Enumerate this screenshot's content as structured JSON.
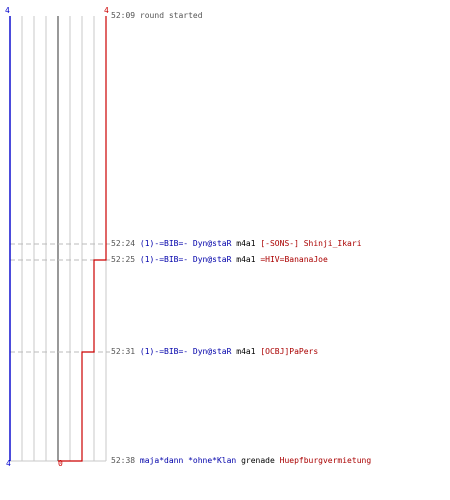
{
  "chart_data": {
    "type": "line",
    "title": "",
    "xlabel": "",
    "ylabel": "",
    "team_colors": {
      "blue": "#0000cc",
      "red": "#cc0000"
    },
    "start": {
      "blue": "4",
      "red": "4"
    },
    "end": {
      "blue": "4",
      "red": "0"
    },
    "red_players_alive": [
      4,
      4,
      3,
      2,
      1,
      0
    ],
    "events": [
      {
        "time": "52:09",
        "kind": "start",
        "text": "round started"
      },
      {
        "time": "52:24",
        "kind": "kill",
        "killer": "(1)-=BIB=- Dyn@staR",
        "weapon": "m4a1",
        "victim": "[-SONS-] Shinji_Ikari",
        "killer_team": "blue",
        "victim_team": "red"
      },
      {
        "time": "52:25",
        "kind": "kill",
        "killer": "(1)-=BIB=- Dyn@staR",
        "weapon": "m4a1",
        "victim": "=HIV=BananaJoe",
        "killer_team": "blue",
        "victim_team": "red"
      },
      {
        "time": "52:31",
        "kind": "kill",
        "killer": "(1)-=BIB=- Dyn@staR",
        "weapon": "m4a1",
        "victim": "[OCBJ]PaPers",
        "killer_team": "blue",
        "victim_team": "red"
      },
      {
        "time": "52:38",
        "kind": "kill",
        "killer": "maja*dann *ohne*Klan",
        "weapon": "grenade",
        "victim": "Huepfburgvermietung",
        "killer_team": "blue",
        "victim_team": "red"
      }
    ]
  }
}
